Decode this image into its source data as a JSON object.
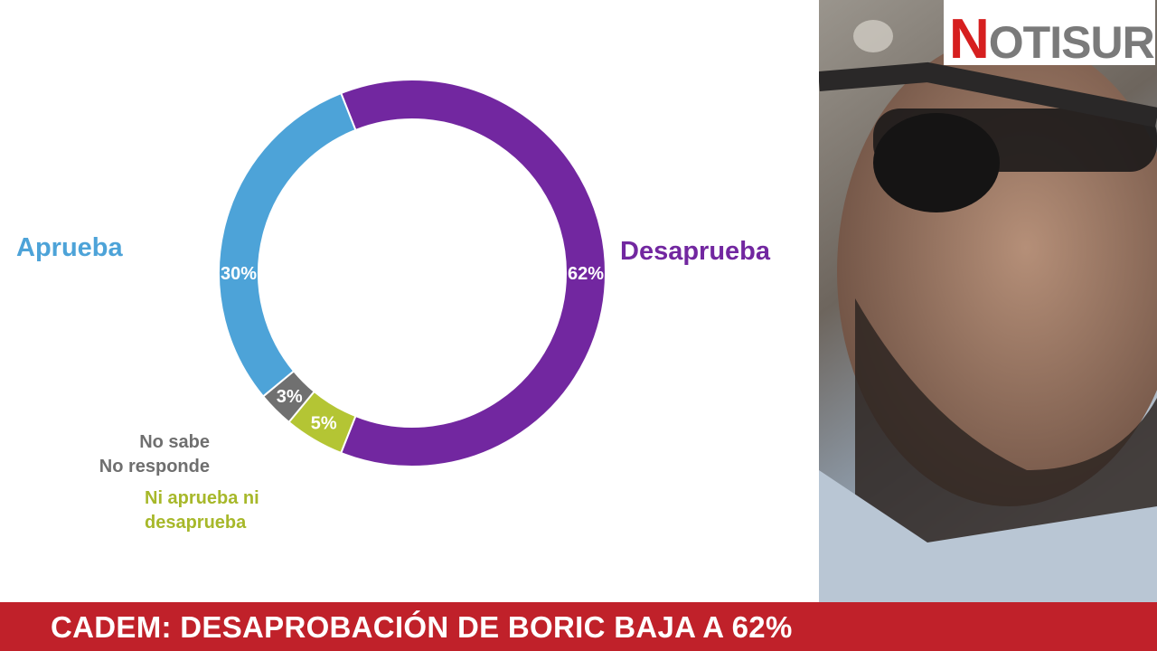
{
  "chart_data": {
    "type": "pie",
    "donut": true,
    "categories": [
      "Aprueba",
      "Desaprueba",
      "Ni aprueba ni desaprueba",
      "No sabe No responde"
    ],
    "values": [
      30,
      62,
      5,
      3
    ],
    "value_labels": [
      "30%",
      "62%",
      "5%",
      "3%"
    ],
    "colors": [
      "#4da3d8",
      "#7227a0",
      "#b4c534",
      "#707070"
    ]
  },
  "labels": {
    "aprueba": "Aprueba",
    "desaprueba": "Desaprueba",
    "ni_line1": "Ni aprueba ni",
    "ni_line2": "desaprueba",
    "nosabe_line1": "No sabe",
    "nosabe_line2": "No responde"
  },
  "logo": {
    "first": "N",
    "rest": "OTISUR"
  },
  "ticker": {
    "headline": "CADEM: DESAPROBACIÓN DE BORIC BAJA A 62%"
  }
}
